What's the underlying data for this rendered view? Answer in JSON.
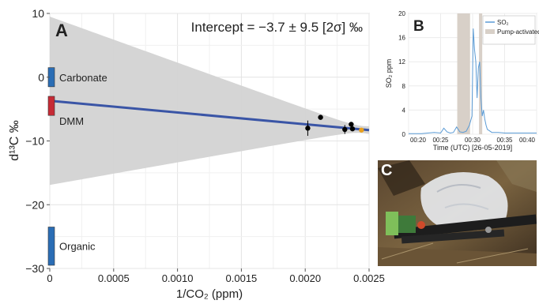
{
  "chart_data": [
    {
      "panel": "A",
      "type": "scatter",
      "annotation": "Intercept = −3.7 ± 9.5 [2σ] ‰",
      "xlabel": "1/CO₂ (ppm)",
      "ylabel": "d¹³C ‰",
      "xlim": [
        0,
        0.0025
      ],
      "ylim": [
        -30,
        10
      ],
      "xticks": [
        0,
        0.0005,
        0.001,
        0.0015,
        0.002,
        0.0025
      ],
      "xtick_labels": [
        "0",
        "0.0005",
        "0.0010",
        "0.0015",
        "0.0020",
        "0.0025"
      ],
      "yticks": [
        10,
        0,
        -10,
        -20,
        -30
      ],
      "ytick_labels": [
        "10",
        "0",
        "−10",
        "−20",
        "−30"
      ],
      "grid": true,
      "regression": {
        "intercept": -3.7,
        "x_end": 0.0025,
        "y_end": -8.3,
        "color": "#3a55a6"
      },
      "confidence_band": {
        "color": "#d3d3d3",
        "upper_at_0": 9.5,
        "lower_at_0": -16.9,
        "upper_at_end": -7.8,
        "lower_at_end": -8.9
      },
      "points": [
        {
          "x": 0.00202,
          "y": -8.0,
          "err": 1.2,
          "color": "#000000"
        },
        {
          "x": 0.00212,
          "y": -6.3,
          "err": 0,
          "color": "#000000"
        },
        {
          "x": 0.00231,
          "y": -8.2,
          "err": 0.7,
          "color": "#000000"
        },
        {
          "x": 0.00236,
          "y": -7.4,
          "err": 0,
          "color": "#000000"
        },
        {
          "x": 0.00237,
          "y": -8.1,
          "err": 0,
          "color": "#000000"
        },
        {
          "x": 0.00244,
          "y": -8.3,
          "err": 0,
          "color": "#e8a020"
        }
      ],
      "source_bars": [
        {
          "label": "Carbonate",
          "y_min": -1.5,
          "y_max": 1.5,
          "color": "#2a6db5"
        },
        {
          "label": "DMM",
          "y_min": -6,
          "y_max": -3,
          "color": "#c62a35"
        },
        {
          "label": "Organic",
          "y_min": -29.5,
          "y_max": -23.5,
          "color": "#2a6db5"
        }
      ]
    },
    {
      "panel": "B",
      "type": "line",
      "xlabel": "Time (UTC) [26-05-2019]",
      "ylabel": "SO₂ ppm",
      "xlim": [
        20,
        40
      ],
      "ylim": [
        0,
        20
      ],
      "xticks": [
        20,
        25,
        30,
        35,
        40
      ],
      "xtick_labels": [
        "00:20",
        "00:25",
        "00:30",
        "00:35",
        "00:40"
      ],
      "yticks": [
        0,
        4,
        8,
        12,
        16,
        20
      ],
      "ytick_labels": [
        "0",
        "4",
        "8",
        "12",
        "16",
        "20"
      ],
      "legend": [
        "SO₂",
        "Pump-activated"
      ],
      "legend_position": "top-right",
      "pump_intervals": [
        [
          27.6,
          29.6
        ],
        [
          31.0,
          31.5
        ]
      ],
      "series": [
        {
          "name": "SO₂",
          "color": "#5b9bd5",
          "x": [
            20,
            21,
            22,
            23,
            24,
            25,
            25.5,
            26,
            26.5,
            27,
            27.5,
            28,
            28.5,
            29,
            29.5,
            29.9,
            30.1,
            30.3,
            30.5,
            30.7,
            30.9,
            31.1,
            31.3,
            31.5,
            31.7,
            31.9,
            32.1,
            32.3,
            32.6,
            33,
            34,
            35,
            36,
            37,
            38,
            39,
            40
          ],
          "values": [
            0.1,
            0.1,
            0.1,
            0.2,
            0.3,
            0.2,
            1.0,
            0.4,
            0.2,
            0.3,
            1.2,
            0.4,
            0.3,
            0.5,
            1.5,
            3.0,
            17.5,
            14.0,
            12.0,
            6.0,
            11.0,
            12.0,
            6.0,
            3.0,
            4.0,
            2.5,
            1.5,
            0.8,
            0.6,
            0.3,
            0.3,
            0.2,
            0.2,
            0.2,
            0.2,
            0.2,
            0.2
          ]
        }
      ]
    }
  ],
  "photo": {
    "label": "C"
  }
}
